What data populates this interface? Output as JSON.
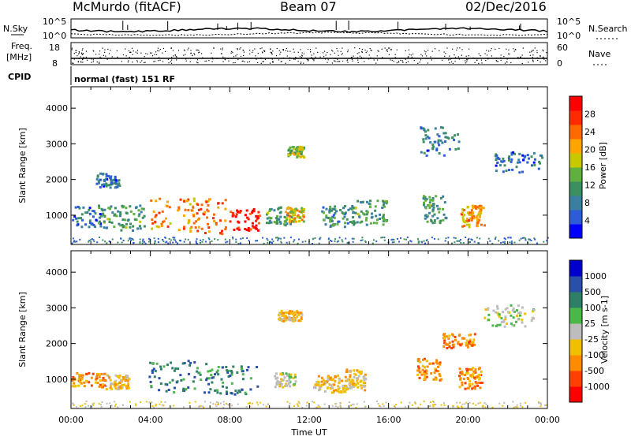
{
  "header": {
    "station": "McMurdo (fitACF)",
    "beam": "Beam 07",
    "date": "02/Dec/2016"
  },
  "noise_panel": {
    "left_label": "N.Sky",
    "right_label": "N.Search",
    "left_ticks": [
      "10^5",
      "10^0"
    ],
    "right_ticks": [
      "10^5",
      "10^0"
    ]
  },
  "freq_panel": {
    "left_label_line1": "Freq.",
    "left_label_line2": "[MHz]",
    "right_label": "Nave",
    "left_ticks": [
      "18",
      "8"
    ],
    "right_ticks": [
      "60",
      "0"
    ]
  },
  "cpid": {
    "label": "CPID",
    "value": "normal (fast) 151 RF"
  },
  "chart_data": [
    {
      "type": "heatmap",
      "name": "power",
      "ylabel": "Slant Range [km]",
      "xlabel": "",
      "ylim": [
        180,
        4600
      ],
      "xlim_hours": [
        0,
        24
      ],
      "y_ticks": [
        "1000",
        "2000",
        "3000",
        "4000"
      ],
      "colorbar": {
        "title": "Power [dB]",
        "colors": [
          "#0000ff",
          "#2e5bd6",
          "#3a7fa0",
          "#3c9060",
          "#5fb040",
          "#c8c800",
          "#ffa500",
          "#ff6a00",
          "#ff2a00",
          "#ff0000"
        ],
        "labels": [
          "4",
          "8",
          "12",
          "16",
          "20",
          "24",
          "28"
        ]
      }
    },
    {
      "type": "heatmap",
      "name": "velocity",
      "ylabel": "Slant Range [km]",
      "xlabel": "Time UT",
      "ylim": [
        180,
        4600
      ],
      "xlim_hours": [
        0,
        24
      ],
      "x_ticks": [
        "00:00",
        "04:00",
        "08:00",
        "12:00",
        "16:00",
        "20:00",
        "00:00"
      ],
      "y_ticks": [
        "1000",
        "2000",
        "3000",
        "4000"
      ],
      "colorbar": {
        "title": "Velocity [m s-1]",
        "colors": [
          "#0000cc",
          "#2a4fa8",
          "#2f7f68",
          "#4ab848",
          "#bdbdbd",
          "#f0c000",
          "#ff8c00",
          "#ff4000",
          "#ff0000"
        ],
        "labels": [
          "1000",
          "500",
          "100",
          "25",
          "-25",
          "-100",
          "-500",
          "-1000"
        ]
      }
    }
  ]
}
